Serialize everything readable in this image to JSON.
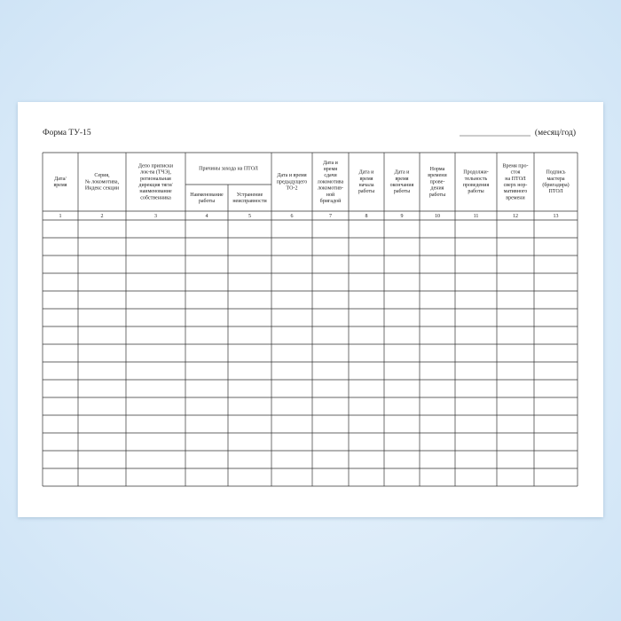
{
  "header": {
    "title": "Форма ТУ-15",
    "period": "(месяц/год)"
  },
  "table": {
    "group": {
      "title": "Причины захода на ПТОЛ",
      "first_column": 4,
      "last_column": 5
    },
    "columns": [
      {
        "lines": [
          "Дата/",
          "время"
        ],
        "number": 1
      },
      {
        "lines": [
          "Серия,",
          "№ локомотива,",
          "Индекс секции"
        ],
        "number": 2
      },
      {
        "lines": [
          "Депо приписки",
          "лок-ва (ТЧЭ),",
          "региональная",
          "дирекция тяги/",
          "наименование",
          "собственника"
        ],
        "number": 3
      },
      {
        "lines": [
          "Наименование",
          "работы"
        ],
        "number": 4
      },
      {
        "lines": [
          "Устранение",
          "неисправности"
        ],
        "number": 5
      },
      {
        "lines": [
          "Дата и время",
          "предыдущего",
          "ТО-2"
        ],
        "number": 6
      },
      {
        "lines": [
          "Дата и",
          "время",
          "сдачи",
          "локомотива",
          "локомотив-",
          "ной",
          "бригадой"
        ],
        "number": 7
      },
      {
        "lines": [
          "Дата и",
          "время",
          "начала",
          "работы"
        ],
        "number": 8
      },
      {
        "lines": [
          "Дата и",
          "время",
          "окончания",
          "работы"
        ],
        "number": 9
      },
      {
        "lines": [
          "Норма",
          "времени",
          "прове-",
          "дения",
          "работы"
        ],
        "number": 10
      },
      {
        "lines": [
          "Продолжи-",
          "тельность",
          "проведения",
          "работы"
        ],
        "number": 11
      },
      {
        "lines": [
          "Время про-",
          "стоя",
          "на ПТОЛ",
          "сверх нор-",
          "мативного",
          "времени"
        ],
        "number": 12
      },
      {
        "lines": [
          "Подпись",
          "мастера",
          "(бригадира)",
          "ПТОЛ"
        ],
        "number": 13
      }
    ]
  }
}
